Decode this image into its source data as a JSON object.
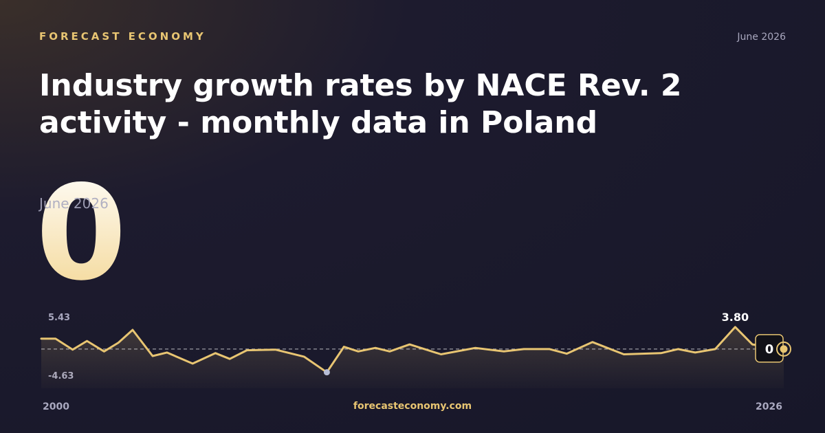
{
  "brand": "FORECAST ECONOMY",
  "date": "June 2026",
  "footer": "forecasteconomy.com",
  "chart_data": {
    "type": "line",
    "title": "Industry growth rates by NACE Rev. 2 activity - monthly data in Poland",
    "x": [
      2000,
      2000.5,
      2001.1,
      2001.6,
      2002.2,
      2002.7,
      2003.2,
      2003.9,
      2004.4,
      2005.3,
      2006.1,
      2006.6,
      2007.2,
      2008.2,
      2009.2,
      2010.0,
      2010.6,
      2011.1,
      2011.7,
      2012.2,
      2012.9,
      2014.0,
      2015.2,
      2016.2,
      2016.9,
      2017.8,
      2018.4,
      2019.3,
      2020.4,
      2021.7,
      2022.3,
      2022.9,
      2023.6,
      2024.3,
      2024.9,
      2026.0
    ],
    "series": [
      {
        "name": "Industry growth rate",
        "color": "#e8c572",
        "values": [
          1.8,
          1.8,
          -0.1,
          1.4,
          -0.4,
          1.1,
          3.3,
          -1.2,
          -0.6,
          -2.5,
          -0.7,
          -1.7,
          -0.2,
          -0.1,
          -1.3,
          -4.0,
          0.4,
          -0.4,
          0.2,
          -0.4,
          0.8,
          -0.9,
          0.2,
          -0.4,
          0,
          0,
          -0.8,
          1.2,
          -0.9,
          -0.7,
          0,
          -0.6,
          0,
          3.8,
          0.8,
          0
        ],
        "value_labels": [
          null,
          null,
          null,
          null,
          null,
          null,
          null,
          null,
          null,
          null,
          null,
          null,
          null,
          null,
          null,
          null,
          null,
          null,
          null,
          null,
          null,
          null,
          null,
          null,
          null,
          null,
          null,
          null,
          null,
          null,
          null,
          null,
          null,
          "3.80",
          null,
          null
        ]
      }
    ],
    "xlim": [
      2000,
      2026
    ],
    "xticks": [
      2000,
      2026
    ],
    "ylim": [
      -4.63,
      5.43
    ],
    "yticks": [
      -4.63,
      5.43
    ],
    "reference_line": 0
  }
}
